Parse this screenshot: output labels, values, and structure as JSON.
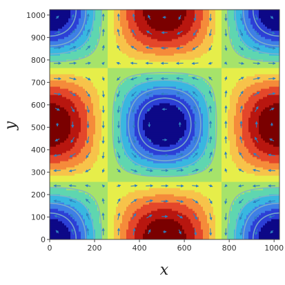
{
  "chart_data": {
    "type": "heatmap",
    "title": "",
    "xlabel": "x",
    "ylabel": "y",
    "xlim": [
      0,
      1024
    ],
    "ylim": [
      0,
      1024
    ],
    "x_ticks": [
      0,
      200,
      400,
      600,
      800,
      1000
    ],
    "y_ticks": [
      0,
      100,
      200,
      300,
      400,
      500,
      600,
      700,
      800,
      900,
      1000
    ],
    "field": "cos(2*pi*x/1024)*cos(2*pi*y/1024)",
    "grid": false,
    "legend": "none",
    "overlays": [
      "velocity-vector-arrows",
      "streamlines"
    ],
    "vortex_centers": [
      [
        512,
        512
      ],
      [
        0,
        0
      ],
      [
        1024,
        0
      ],
      [
        0,
        1024
      ],
      [
        1024,
        1024
      ]
    ],
    "colorscale": [
      "#0d0887",
      "#2c3fd6",
      "#3f7fe6",
      "#39b7e0",
      "#5fd6b0",
      "#a6e36a",
      "#e6ee4a",
      "#f7c34a",
      "#f58b3a",
      "#e4472a",
      "#b8160f",
      "#7a0000"
    ],
    "arrow_color": "#2f7fbf",
    "streamline_color": "#7fb2c8"
  }
}
